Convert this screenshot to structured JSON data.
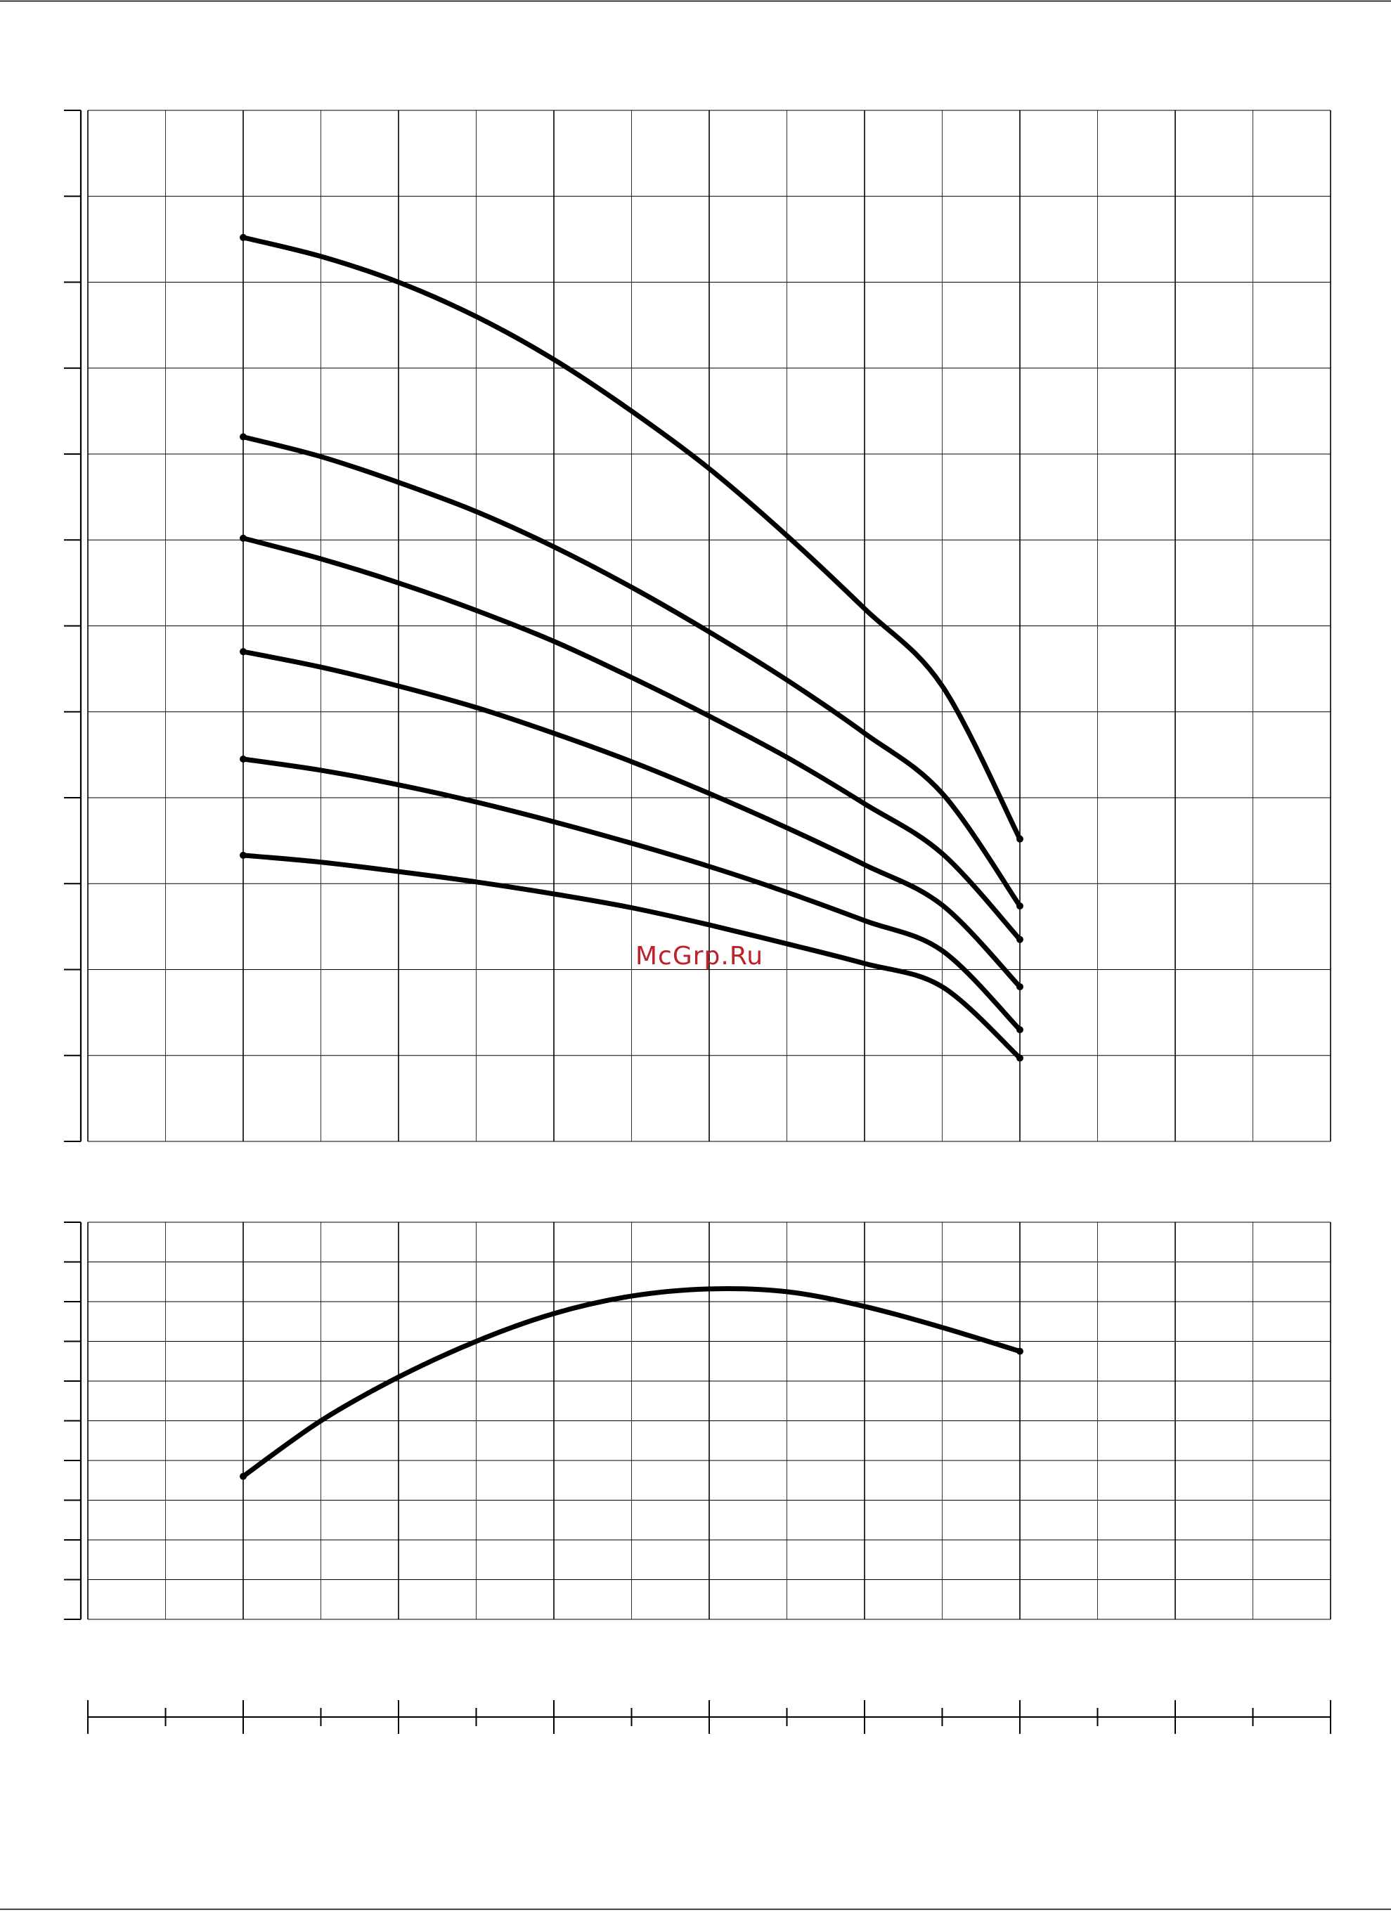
{
  "watermark": "McGrp.Ru",
  "colors": {
    "curve": "#000000",
    "grid": "#000000",
    "watermark": "#c0202a",
    "background": "#ffffff"
  },
  "chart_data": [
    {
      "type": "line",
      "title": "",
      "xlabel": "",
      "ylabel": "",
      "grid": true,
      "xlim": [
        0,
        16
      ],
      "ylim": [
        0,
        12
      ],
      "x_minor_step": 1,
      "x_major_step": 2,
      "y_step": 1,
      "series": [
        {
          "x": [
            2,
            3,
            4,
            5,
            6,
            7,
            8,
            9,
            10,
            11,
            12
          ],
          "y": [
            10.52,
            10.3,
            10.0,
            9.6,
            9.1,
            8.5,
            7.83,
            7.05,
            6.2,
            5.3,
            3.52
          ]
        },
        {
          "x": [
            2,
            3,
            4,
            5,
            6,
            7,
            8,
            9,
            10,
            11,
            12
          ],
          "y": [
            8.2,
            7.97,
            7.67,
            7.33,
            6.92,
            6.45,
            5.93,
            5.37,
            4.75,
            4.05,
            2.74
          ]
        },
        {
          "x": [
            2,
            3,
            4,
            5,
            6,
            7,
            8,
            9,
            10,
            11,
            12
          ],
          "y": [
            7.02,
            6.78,
            6.5,
            6.18,
            5.82,
            5.4,
            4.95,
            4.47,
            3.93,
            3.35,
            2.35
          ]
        },
        {
          "x": [
            2,
            3,
            4,
            5,
            6,
            7,
            8,
            9,
            10,
            11,
            12
          ],
          "y": [
            5.7,
            5.52,
            5.3,
            5.05,
            4.75,
            4.42,
            4.05,
            3.65,
            3.22,
            2.75,
            1.8
          ]
        },
        {
          "x": [
            2,
            3,
            4,
            5,
            6,
            7,
            8,
            9,
            10,
            11,
            12
          ],
          "y": [
            4.45,
            4.32,
            4.15,
            3.95,
            3.72,
            3.47,
            3.2,
            2.9,
            2.57,
            2.22,
            1.3
          ]
        },
        {
          "x": [
            2,
            3,
            4,
            5,
            6,
            7,
            8,
            9,
            10,
            11,
            12
          ],
          "y": [
            3.33,
            3.25,
            3.14,
            3.02,
            2.88,
            2.72,
            2.52,
            2.3,
            2.07,
            1.8,
            0.97
          ]
        }
      ]
    },
    {
      "type": "line",
      "title": "",
      "xlabel": "",
      "ylabel": "",
      "grid": true,
      "xlim": [
        0,
        16
      ],
      "ylim": [
        0,
        10
      ],
      "x_minor_step": 1,
      "x_major_step": 2,
      "y_step": 1,
      "series": [
        {
          "x": [
            2,
            3,
            4,
            5,
            6,
            7,
            8,
            9,
            10,
            11,
            12
          ],
          "y": [
            3.6,
            5.0,
            6.1,
            7.0,
            7.7,
            8.14,
            8.32,
            8.25,
            7.88,
            7.35,
            6.75
          ]
        }
      ]
    },
    {
      "type": "axis",
      "title": "",
      "xlabel": "",
      "xlim": [
        0,
        16
      ],
      "x_minor_step": 1,
      "x_major_step": 2
    }
  ]
}
